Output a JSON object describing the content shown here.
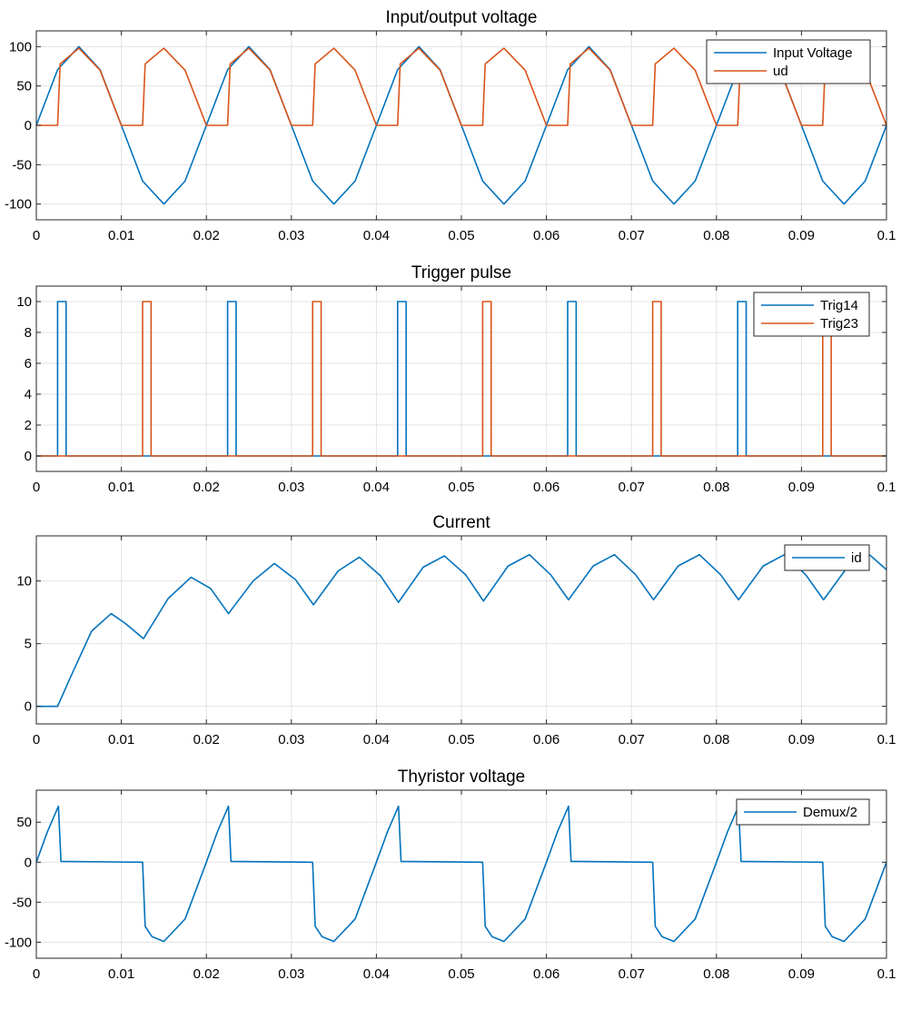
{
  "chart_data": [
    {
      "type": "line",
      "title": "Input/output voltage",
      "xlabel": "",
      "ylabel": "",
      "xlim": [
        0,
        0.1
      ],
      "ylim": [
        -120,
        120
      ],
      "grid": true,
      "legend_position": "top-right",
      "x_ticks": [
        0,
        0.01,
        0.02,
        0.03,
        0.04,
        0.05,
        0.06,
        0.07,
        0.08,
        0.09,
        0.1
      ],
      "x_tick_labels": [
        "0",
        "0.01",
        "0.02",
        "0.03",
        "0.04",
        "0.05",
        "0.06",
        "0.07",
        "0.08",
        "0.09",
        "0.1"
      ],
      "y_ticks": [
        -100,
        -50,
        0,
        50,
        100
      ],
      "y_tick_labels": [
        "-100",
        "-50",
        "0",
        "50",
        "100"
      ],
      "series": [
        {
          "name": "Input Voltage",
          "color": "#0072BD",
          "x": [
            0,
            0.0025,
            0.005,
            0.0075,
            0.01,
            0.0125,
            0.015,
            0.0175,
            0.02,
            0.0225,
            0.025,
            0.0275,
            0.03,
            0.0325,
            0.035,
            0.0375,
            0.04,
            0.0425,
            0.045,
            0.0475,
            0.05,
            0.0525,
            0.055,
            0.0575,
            0.06,
            0.0625,
            0.065,
            0.0675,
            0.07,
            0.0725,
            0.075,
            0.0775,
            0.08,
            0.0825,
            0.085,
            0.0875,
            0.09,
            0.0925,
            0.095,
            0.0975,
            0.1
          ],
          "y": [
            0,
            70.7,
            100,
            70.7,
            0,
            -70.7,
            -100,
            -70.7,
            0,
            70.7,
            100,
            70.7,
            0,
            -70.7,
            -100,
            -70.7,
            0,
            70.7,
            100,
            70.7,
            0,
            -70.7,
            -100,
            -70.7,
            0,
            70.7,
            100,
            70.7,
            0,
            -70.7,
            -100,
            -70.7,
            0,
            70.7,
            100,
            70.7,
            0,
            -70.7,
            -100,
            -70.7,
            0
          ]
        },
        {
          "name": "ud",
          "color": "#D95319",
          "x": [
            0,
            0.0025,
            0.0028,
            0.005,
            0.0075,
            0.01,
            0.0125,
            0.0128,
            0.015,
            0.0175,
            0.02,
            0.0225,
            0.0228,
            0.025,
            0.0275,
            0.03,
            0.0325,
            0.0328,
            0.035,
            0.0375,
            0.04,
            0.0425,
            0.0428,
            0.045,
            0.0475,
            0.05,
            0.0525,
            0.0528,
            0.055,
            0.0575,
            0.06,
            0.0625,
            0.0628,
            0.065,
            0.0675,
            0.07,
            0.0725,
            0.0728,
            0.075,
            0.0775,
            0.08,
            0.0825,
            0.0828,
            0.085,
            0.0875,
            0.09,
            0.0925,
            0.0928,
            0.095,
            0.0975,
            0.1
          ],
          "y": [
            0,
            0,
            78,
            98,
            70,
            0,
            0,
            78,
            98,
            70,
            0,
            0,
            78,
            98,
            70,
            0,
            0,
            78,
            98,
            70,
            0,
            0,
            78,
            98,
            70,
            0,
            0,
            78,
            98,
            70,
            0,
            0,
            78,
            98,
            70,
            0,
            0,
            78,
            98,
            70,
            0,
            0,
            78,
            98,
            70,
            0,
            0,
            78,
            98,
            70,
            0
          ]
        }
      ]
    },
    {
      "type": "line",
      "title": "Trigger pulse",
      "xlabel": "",
      "ylabel": "",
      "xlim": [
        0,
        0.1
      ],
      "ylim": [
        -1,
        11
      ],
      "grid": true,
      "legend_position": "top-right",
      "x_ticks": [
        0,
        0.01,
        0.02,
        0.03,
        0.04,
        0.05,
        0.06,
        0.07,
        0.08,
        0.09,
        0.1
      ],
      "x_tick_labels": [
        "0",
        "0.01",
        "0.02",
        "0.03",
        "0.04",
        "0.05",
        "0.06",
        "0.07",
        "0.08",
        "0.09",
        "0.1"
      ],
      "y_ticks": [
        0,
        2,
        4,
        6,
        8,
        10
      ],
      "y_tick_labels": [
        "0",
        "2",
        "4",
        "6",
        "8",
        "10"
      ],
      "series": [
        {
          "name": "Trig14",
          "color": "#0072BD",
          "x": [
            0,
            0.0025,
            0.0025,
            0.0035,
            0.0035,
            0.0225,
            0.0225,
            0.0235,
            0.0235,
            0.0425,
            0.0425,
            0.0435,
            0.0435,
            0.0625,
            0.0625,
            0.0635,
            0.0635,
            0.0825,
            0.0825,
            0.0835,
            0.0835,
            0.1
          ],
          "y": [
            0,
            0,
            10,
            10,
            0,
            0,
            10,
            10,
            0,
            0,
            10,
            10,
            0,
            0,
            10,
            10,
            0,
            0,
            10,
            10,
            0,
            0
          ]
        },
        {
          "name": "Trig23",
          "color": "#D95319",
          "x": [
            0,
            0.0125,
            0.0125,
            0.0135,
            0.0135,
            0.0325,
            0.0325,
            0.0335,
            0.0335,
            0.0525,
            0.0525,
            0.0535,
            0.0535,
            0.0725,
            0.0725,
            0.0735,
            0.0735,
            0.0925,
            0.0925,
            0.0935,
            0.0935,
            0.1
          ],
          "y": [
            0,
            0,
            10,
            10,
            0,
            0,
            10,
            10,
            0,
            0,
            10,
            10,
            0,
            0,
            10,
            10,
            0,
            0,
            10,
            10,
            0,
            0
          ]
        }
      ]
    },
    {
      "type": "line",
      "title": "Current",
      "xlabel": "",
      "ylabel": "",
      "xlim": [
        0,
        0.1
      ],
      "ylim": [
        -1.4,
        13.6
      ],
      "grid": true,
      "legend_position": "top-right",
      "x_ticks": [
        0,
        0.01,
        0.02,
        0.03,
        0.04,
        0.05,
        0.06,
        0.07,
        0.08,
        0.09,
        0.1
      ],
      "x_tick_labels": [
        "0",
        "0.01",
        "0.02",
        "0.03",
        "0.04",
        "0.05",
        "0.06",
        "0.07",
        "0.08",
        "0.09",
        "0.1"
      ],
      "y_ticks": [
        0,
        5,
        10
      ],
      "y_tick_labels": [
        "0",
        "5",
        "10"
      ],
      "series": [
        {
          "name": "id",
          "color": "#0072BD",
          "x": [
            0,
            0.0025,
            0.004,
            0.0065,
            0.0088,
            0.0105,
            0.0126,
            0.0155,
            0.0182,
            0.0205,
            0.0226,
            0.0255,
            0.028,
            0.0305,
            0.0326,
            0.0355,
            0.038,
            0.0405,
            0.0426,
            0.0455,
            0.048,
            0.0505,
            0.0526,
            0.0555,
            0.058,
            0.0605,
            0.0626,
            0.0655,
            0.068,
            0.0705,
            0.0726,
            0.0755,
            0.078,
            0.0805,
            0.0826,
            0.0855,
            0.088,
            0.0905,
            0.0926,
            0.0955,
            0.098,
            0.1
          ],
          "y": [
            0,
            0,
            2.3,
            6.0,
            7.4,
            6.6,
            5.4,
            8.6,
            10.3,
            9.4,
            7.4,
            10.0,
            11.4,
            10.1,
            8.1,
            10.8,
            11.9,
            10.4,
            8.3,
            11.1,
            12.0,
            10.5,
            8.4,
            11.2,
            12.1,
            10.5,
            8.5,
            11.2,
            12.1,
            10.5,
            8.5,
            11.2,
            12.1,
            10.5,
            8.5,
            11.2,
            12.1,
            10.5,
            8.5,
            11.2,
            12.1,
            10.9
          ]
        }
      ]
    },
    {
      "type": "line",
      "title": "Thyristor voltage",
      "xlabel": "",
      "ylabel": "",
      "xlim": [
        0,
        0.1
      ],
      "ylim": [
        -120,
        90
      ],
      "grid": true,
      "legend_position": "top-right",
      "x_ticks": [
        0,
        0.01,
        0.02,
        0.03,
        0.04,
        0.05,
        0.06,
        0.07,
        0.08,
        0.09,
        0.1
      ],
      "x_tick_labels": [
        "0",
        "0.01",
        "0.02",
        "0.03",
        "0.04",
        "0.05",
        "0.06",
        "0.07",
        "0.08",
        "0.09",
        "0.1"
      ],
      "y_ticks": [
        -100,
        -50,
        0,
        50
      ],
      "y_tick_labels": [
        "-100",
        "-50",
        "0",
        "50"
      ],
      "series": [
        {
          "name": "Demux/2",
          "color": "#0072BD",
          "x": [
            0,
            0.0013,
            0.0026,
            0.0029,
            0.0125,
            0.0128,
            0.0136,
            0.015,
            0.0175,
            0.02,
            0.0213,
            0.0226,
            0.0229,
            0.0325,
            0.0328,
            0.0336,
            0.035,
            0.0375,
            0.04,
            0.0413,
            0.0426,
            0.0429,
            0.0525,
            0.0528,
            0.0536,
            0.055,
            0.0575,
            0.06,
            0.0613,
            0.0626,
            0.0629,
            0.0725,
            0.0728,
            0.0736,
            0.075,
            0.0775,
            0.08,
            0.0813,
            0.0826,
            0.0829,
            0.0925,
            0.0928,
            0.0936,
            0.095,
            0.0975,
            0.1
          ],
          "y": [
            0,
            38,
            70,
            1,
            0,
            -80,
            -93,
            -99,
            -71,
            0,
            38,
            70,
            1,
            0,
            -80,
            -93,
            -99,
            -71,
            0,
            38,
            70,
            1,
            0,
            -80,
            -93,
            -99,
            -71,
            0,
            38,
            70,
            1,
            0,
            -80,
            -93,
            -99,
            -71,
            0,
            38,
            70,
            1,
            0,
            -80,
            -93,
            -99,
            -71,
            0
          ]
        }
      ]
    }
  ]
}
